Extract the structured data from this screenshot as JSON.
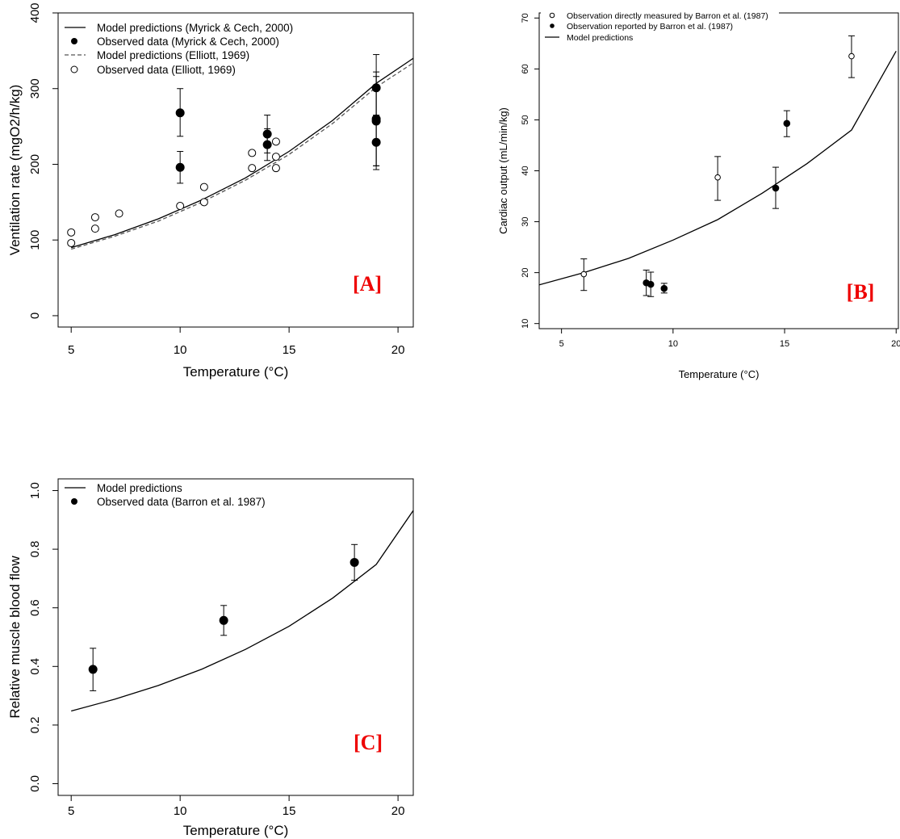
{
  "chart_data": [
    {
      "panel_tag": "[A]",
      "type": "scatter",
      "xlabel": "Temperature (°C)",
      "ylabel": "Ventilation rate (mgO2/h/kg)",
      "xlim": [
        4.4,
        20.7
      ],
      "ylim": [
        -15,
        400
      ],
      "xticks": [
        5,
        10,
        15,
        20
      ],
      "yticks": [
        0,
        100,
        200,
        300,
        400
      ],
      "grid": false,
      "legend_position": "top-left",
      "series": [
        {
          "name": "Model predictions (Myrick & Cech, 2000)",
          "type": "line",
          "style": "solid",
          "color": "#000000",
          "x": [
            5,
            7,
            9,
            11,
            13,
            15,
            17,
            19,
            20.7
          ],
          "y": [
            90,
            107,
            128,
            153,
            182,
            217,
            258,
            307,
            340
          ]
        },
        {
          "name": "Observed data (Myrick & Cech, 2000)",
          "type": "points",
          "marker": "filled",
          "color": "#000000",
          "points": [
            {
              "x": 10,
              "y": 268,
              "lo": 237,
              "hi": 300
            },
            {
              "x": 10,
              "y": 196,
              "lo": 175,
              "hi": 217
            },
            {
              "x": 14,
              "y": 240,
              "lo": 215,
              "hi": 265
            },
            {
              "x": 14,
              "y": 226,
              "lo": 205,
              "hi": 247
            },
            {
              "x": 19,
              "y": 301,
              "lo": 257,
              "hi": 345
            },
            {
              "x": 19,
              "y": 260,
              "lo": 198,
              "hi": 322
            },
            {
              "x": 19,
              "y": 257,
              "lo": 198,
              "hi": 316
            },
            {
              "x": 19,
              "y": 229,
              "lo": 193,
              "hi": 265
            }
          ]
        },
        {
          "name": "Model predictions (Elliott, 1969)",
          "type": "line",
          "style": "dashed",
          "color": "#555555",
          "x": [
            5,
            7,
            9,
            11,
            13,
            15,
            17,
            19,
            20.7
          ],
          "y": [
            88,
            105,
            125,
            150,
            179,
            213,
            254,
            302,
            334
          ]
        },
        {
          "name": "Observed data (Elliott, 1969)",
          "type": "points",
          "marker": "open",
          "color": "#000000",
          "points": [
            {
              "x": 5,
              "y": 110
            },
            {
              "x": 5,
              "y": 96
            },
            {
              "x": 6.1,
              "y": 130
            },
            {
              "x": 6.1,
              "y": 115
            },
            {
              "x": 7.2,
              "y": 135
            },
            {
              "x": 10,
              "y": 145
            },
            {
              "x": 11.1,
              "y": 170
            },
            {
              "x": 11.1,
              "y": 150
            },
            {
              "x": 13.3,
              "y": 215
            },
            {
              "x": 13.3,
              "y": 195
            },
            {
              "x": 14.4,
              "y": 230
            },
            {
              "x": 14.4,
              "y": 210
            },
            {
              "x": 14.4,
              "y": 195
            }
          ]
        }
      ]
    },
    {
      "panel_tag": "[B]",
      "type": "scatter",
      "xlabel": "Temperature (°C)",
      "ylabel": "Cardiac output (mL/min/kg)",
      "xlim": [
        4,
        20.1
      ],
      "ylim": [
        9,
        71
      ],
      "xticks": [
        5,
        10,
        15,
        20
      ],
      "yticks": [
        10,
        20,
        30,
        40,
        50,
        60,
        70
      ],
      "grid": false,
      "legend_position": "top-left",
      "series": [
        {
          "name": "Observation directly measured by Barron et al. (1987)",
          "type": "points",
          "marker": "open",
          "color": "#000000",
          "points": [
            {
              "x": 6,
              "y": 19.7,
              "lo": 16.5,
              "hi": 22.7
            },
            {
              "x": 12,
              "y": 38.7,
              "lo": 34.2,
              "hi": 42.8
            },
            {
              "x": 18,
              "y": 62.5,
              "lo": 58.3,
              "hi": 66.5
            }
          ]
        },
        {
          "name": "Observation reported by Barron et al. (1987)",
          "type": "points",
          "marker": "filled",
          "color": "#000000",
          "points": [
            {
              "x": 8.8,
              "y": 18.0,
              "lo": 15.5,
              "hi": 20.5
            },
            {
              "x": 9.0,
              "y": 17.7,
              "lo": 15.3,
              "hi": 20.1
            },
            {
              "x": 9.6,
              "y": 16.9,
              "lo": 16.0,
              "hi": 17.9
            },
            {
              "x": 14.6,
              "y": 36.6,
              "lo": 32.6,
              "hi": 40.7
            },
            {
              "x": 15.1,
              "y": 49.3,
              "lo": 46.7,
              "hi": 51.8
            }
          ]
        },
        {
          "name": "Model predictions",
          "type": "line",
          "style": "solid",
          "color": "#000000",
          "x": [
            4,
            6,
            8,
            10,
            12,
            14,
            16,
            18,
            20
          ],
          "y": [
            17.6,
            20.0,
            22.8,
            26.4,
            30.4,
            35.6,
            41.4,
            48.0,
            63.5
          ]
        }
      ]
    },
    {
      "panel_tag": "[C]",
      "type": "scatter",
      "xlabel": "Temperature (°C)",
      "ylabel": "Relative muscle blood flow",
      "xlim": [
        4.4,
        20.7
      ],
      "ylim": [
        -0.04,
        1.04
      ],
      "xticks": [
        5,
        10,
        15,
        20
      ],
      "yticks": [
        0.0,
        0.2,
        0.4,
        0.6,
        0.8,
        1.0
      ],
      "ytick_labels": [
        "0.0",
        "0.2",
        "0.4",
        "0.6",
        "0.8",
        "1.0"
      ],
      "grid": false,
      "legend_position": "top-left",
      "series": [
        {
          "name": "Model predictions",
          "type": "line",
          "style": "solid",
          "color": "#000000",
          "x": [
            5,
            7,
            9,
            11,
            13,
            15,
            17,
            19,
            20.7
          ],
          "y": [
            0.248,
            0.288,
            0.335,
            0.391,
            0.458,
            0.537,
            0.633,
            0.748,
            0.932
          ]
        },
        {
          "name": "Observed data (Barron et al. 1987)",
          "type": "points",
          "marker": "filled",
          "color": "#000000",
          "points": [
            {
              "x": 6,
              "y": 0.39,
              "lo": 0.317,
              "hi": 0.462
            },
            {
              "x": 12,
              "y": 0.557,
              "lo": 0.506,
              "hi": 0.608
            },
            {
              "x": 18,
              "y": 0.755,
              "lo": 0.694,
              "hi": 0.816
            }
          ]
        }
      ]
    }
  ]
}
